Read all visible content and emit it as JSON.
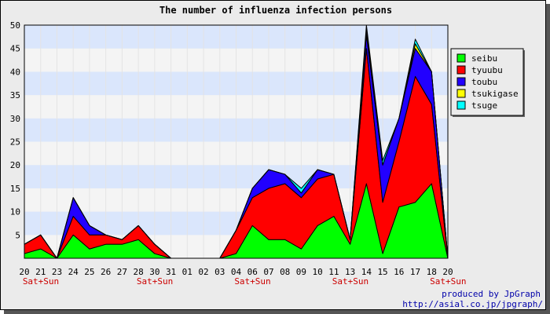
{
  "chart_data": {
    "type": "area",
    "stacked": true,
    "title": "The number of influenza infection persons",
    "xlabel": "",
    "ylabel": "",
    "ylim": [
      0,
      50
    ],
    "y_ticks": [
      5,
      10,
      15,
      20,
      25,
      30,
      35,
      40,
      45,
      50
    ],
    "categories": [
      "20",
      "21",
      "23",
      "24",
      "25",
      "26",
      "27",
      "28",
      "30",
      "31",
      "01",
      "02",
      "03",
      "04",
      "06",
      "07",
      "08",
      "09",
      "10",
      "11",
      "13",
      "14",
      "15",
      "16",
      "17",
      "18",
      "20"
    ],
    "weekend_marks": [
      {
        "category_index": 0,
        "label": "Sat+Sun"
      },
      {
        "category_index": 7,
        "label": "Sat+Sun"
      },
      {
        "category_index": 13,
        "label": "Sat+Sun"
      },
      {
        "category_index": 19,
        "label": "Sat+Sun"
      },
      {
        "category_index": 25,
        "label": "Sat+Sun"
      }
    ],
    "series": [
      {
        "name": "seibu",
        "color": "#00ff00",
        "values": [
          1,
          2,
          0,
          5,
          2,
          3,
          3,
          4,
          1,
          0,
          0,
          0,
          0,
          1,
          7,
          4,
          4,
          2,
          7,
          9,
          3,
          16,
          1,
          11,
          12,
          16,
          0
        ]
      },
      {
        "name": "tyuubu",
        "color": "#ff0000",
        "values": [
          2,
          3,
          0,
          4,
          3,
          2,
          1,
          3,
          2,
          0,
          0,
          0,
          0,
          5,
          6,
          11,
          12,
          11,
          10,
          9,
          1,
          29,
          11,
          14,
          27,
          17,
          0
        ]
      },
      {
        "name": "toubu",
        "color": "#2200ff",
        "values": [
          0,
          0,
          0,
          4,
          2,
          0,
          0,
          0,
          0,
          0,
          0,
          0,
          0,
          0,
          2,
          4,
          2,
          1,
          2,
          0,
          0,
          3,
          8,
          5,
          6,
          7,
          0
        ]
      },
      {
        "name": "tsukigase",
        "color": "#ffff00",
        "values": [
          0,
          0,
          0,
          0,
          0,
          0,
          0,
          0,
          0,
          0,
          0,
          0,
          0,
          0,
          0,
          0,
          0,
          0,
          0,
          0,
          0,
          1,
          0,
          0,
          1,
          0,
          0
        ]
      },
      {
        "name": "tsuge",
        "color": "#00ffff",
        "values": [
          0,
          0,
          0,
          0,
          0,
          0,
          0,
          0,
          0,
          0,
          0,
          0,
          0,
          0,
          0,
          0,
          0,
          1,
          0,
          0,
          0,
          1,
          1,
          0,
          1,
          0,
          0
        ]
      }
    ],
    "grid": true,
    "legend_position": "right",
    "credit": [
      "produced by JpGraph",
      "http://asial.co.jp/jpgraph/"
    ],
    "colors": {
      "band_light": "#f4f4f4",
      "band_blue": "#dae6fc",
      "weekend_label": "#cc0000",
      "credit_text": "#0000aa"
    }
  }
}
